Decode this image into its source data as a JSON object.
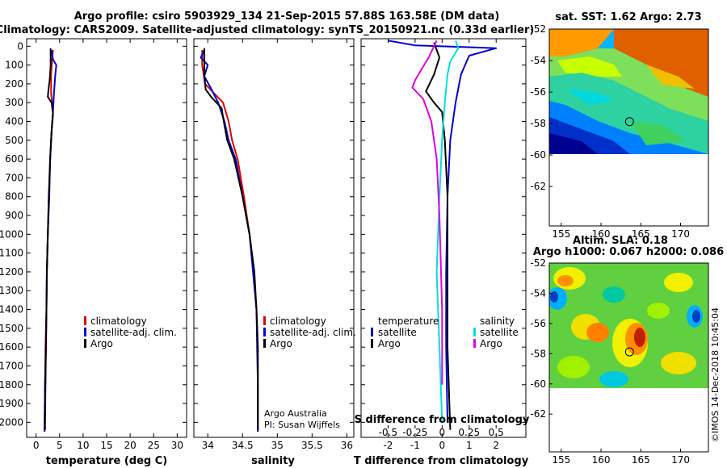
{
  "header": {
    "title_line1": "Argo profile: csiro 5903929_134 21-Sep-2015 57.88S 163.58E (DM data)",
    "title_line2": "Climatology: CARS2009. Satellite-adjusted climatology: synTS_20150921.nc (0.33d earlier)"
  },
  "colors": {
    "climatology": "#e00000",
    "satellite": "#0000d0",
    "argo": "#000000",
    "sat_salinity": "#00e0e0",
    "argo_salinity": "#e000e0"
  },
  "credits": {
    "line1": "Argo Australia",
    "line2": "PI: Susan Wijffels"
  },
  "watermark": "©IMOS 14-Dec-2018 10:45:04",
  "chart_data": [
    {
      "type": "line",
      "id": "temperature",
      "xlabel": "temperature (deg C)",
      "ylabel": "",
      "xlim": [
        -2,
        32
      ],
      "ylim": [
        2080,
        -40
      ],
      "xticks": [
        0,
        5,
        10,
        15,
        20,
        25,
        30
      ],
      "yticks": [
        0,
        100,
        200,
        300,
        400,
        500,
        600,
        700,
        800,
        900,
        1000,
        1100,
        1200,
        1300,
        1400,
        1500,
        1600,
        1700,
        1800,
        1900,
        2000
      ],
      "legend": [
        "climatology",
        "satellite-adj. clim.",
        "Argo"
      ],
      "series": [
        {
          "name": "climatology",
          "color": "#e00000",
          "points": [
            [
              3.6,
              20
            ],
            [
              3.4,
              80
            ],
            [
              3.2,
              150
            ],
            [
              3.2,
              250
            ],
            [
              3.6,
              350
            ],
            [
              3.3,
              450
            ],
            [
              3.0,
              600
            ],
            [
              2.7,
              800
            ],
            [
              2.5,
              1000
            ],
            [
              2.3,
              1200
            ],
            [
              2.2,
              1400
            ],
            [
              2.0,
              1600
            ],
            [
              1.9,
              1800
            ],
            [
              1.8,
              2050
            ]
          ]
        },
        {
          "name": "satellite-adj. clim.",
          "color": "#0000d0",
          "points": [
            [
              3.3,
              20
            ],
            [
              3.6,
              70
            ],
            [
              4.3,
              100
            ],
            [
              4.1,
              150
            ],
            [
              3.8,
              250
            ],
            [
              3.6,
              350
            ],
            [
              3.3,
              450
            ],
            [
              3.0,
              600
            ],
            [
              2.8,
              800
            ],
            [
              2.5,
              1000
            ],
            [
              2.3,
              1200
            ],
            [
              2.2,
              1400
            ],
            [
              2.1,
              1600
            ],
            [
              1.9,
              1800
            ],
            [
              1.8,
              2050
            ]
          ]
        },
        {
          "name": "Argo",
          "color": "#000000",
          "points": [
            [
              3.1,
              10
            ],
            [
              3.1,
              100
            ],
            [
              2.9,
              180
            ],
            [
              2.6,
              240
            ],
            [
              2.5,
              270
            ],
            [
              3.3,
              300
            ],
            [
              3.6,
              360
            ],
            [
              3.3,
              450
            ],
            [
              3.0,
              600
            ],
            [
              2.7,
              800
            ],
            [
              2.5,
              1000
            ],
            [
              2.3,
              1200
            ],
            [
              2.2,
              1400
            ],
            [
              2.1,
              1600
            ],
            [
              2.0,
              1800
            ],
            [
              1.9,
              2040
            ]
          ]
        }
      ]
    },
    {
      "type": "line",
      "id": "salinity",
      "xlabel": "salinity",
      "ylabel": "",
      "xlim": [
        33.8,
        36.1
      ],
      "ylim": [
        2080,
        -40
      ],
      "xticks": [
        34,
        34.5,
        35,
        35.5,
        36
      ],
      "legend": [
        "climatology",
        "satellite-adj. clim.",
        "Argo"
      ],
      "series": [
        {
          "name": "climatology",
          "color": "#e00000",
          "points": [
            [
              33.92,
              20
            ],
            [
              33.92,
              100
            ],
            [
              33.96,
              200
            ],
            [
              34.22,
              300
            ],
            [
              34.3,
              400
            ],
            [
              34.35,
              500
            ],
            [
              34.43,
              600
            ],
            [
              34.52,
              800
            ],
            [
              34.6,
              1000
            ],
            [
              34.66,
              1200
            ],
            [
              34.7,
              1400
            ],
            [
              34.72,
              1600
            ],
            [
              34.72,
              1800
            ],
            [
              34.72,
              2050
            ]
          ]
        },
        {
          "name": "satellite-adj. clim.",
          "color": "#0000d0",
          "points": [
            [
              33.95,
              20
            ],
            [
              33.9,
              60
            ],
            [
              34.0,
              100
            ],
            [
              33.95,
              160
            ],
            [
              34.04,
              220
            ],
            [
              34.15,
              300
            ],
            [
              34.24,
              400
            ],
            [
              34.3,
              500
            ],
            [
              34.4,
              600
            ],
            [
              34.5,
              800
            ],
            [
              34.6,
              1000
            ],
            [
              34.65,
              1200
            ],
            [
              34.7,
              1400
            ],
            [
              34.71,
              1600
            ],
            [
              34.72,
              1800
            ],
            [
              34.72,
              2050
            ]
          ]
        },
        {
          "name": "Argo",
          "color": "#000000",
          "points": [
            [
              33.95,
              10
            ],
            [
              33.95,
              150
            ],
            [
              33.97,
              230
            ],
            [
              34.05,
              270
            ],
            [
              34.2,
              330
            ],
            [
              34.23,
              400
            ],
            [
              34.28,
              500
            ],
            [
              34.38,
              600
            ],
            [
              34.5,
              800
            ],
            [
              34.6,
              1000
            ],
            [
              34.67,
              1200
            ],
            [
              34.7,
              1400
            ],
            [
              34.72,
              1600
            ],
            [
              34.72,
              1800
            ],
            [
              34.72,
              2040
            ]
          ]
        }
      ]
    },
    {
      "type": "line",
      "id": "difference",
      "xlabel": "T difference from climatology",
      "ylabel": "",
      "second_xlabel": "S difference from climatology",
      "xlim": [
        -3,
        3.1
      ],
      "ylim": [
        2080,
        -40
      ],
      "xticks": [
        -2,
        -1,
        0,
        1,
        2
      ],
      "second_xticks": [
        -0.5,
        -0.25,
        0,
        0.25,
        0.5
      ],
      "legend_temperature_title": "temperature",
      "legend_salinity_title": "salinity",
      "legend": [
        "satellite",
        "Argo"
      ],
      "series": [
        {
          "name": "T satellite",
          "color": "#0000d0",
          "points": [
            [
              -2.0,
              -30
            ],
            [
              -1.0,
              -5
            ],
            [
              1.0,
              5
            ],
            [
              2.0,
              10
            ],
            [
              1.0,
              50
            ],
            [
              0.7,
              150
            ],
            [
              0.5,
              300
            ],
            [
              0.3,
              500
            ],
            [
              0.2,
              800
            ],
            [
              0.15,
              1200
            ],
            [
              0.15,
              1600
            ],
            [
              0.2,
              2000
            ]
          ]
        },
        {
          "name": "T Argo",
          "color": "#000000",
          "points": [
            [
              -0.3,
              -20
            ],
            [
              -0.1,
              60
            ],
            [
              -0.3,
              150
            ],
            [
              -0.6,
              240
            ],
            [
              -0.3,
              300
            ],
            [
              0.0,
              350
            ],
            [
              0.1,
              500
            ],
            [
              0.2,
              800
            ],
            [
              0.2,
              1200
            ],
            [
              0.2,
              1600
            ],
            [
              0.3,
              2040
            ]
          ]
        },
        {
          "name": "S satellite",
          "color": "#00e0e0",
          "points": [
            [
              0.5,
              -30
            ],
            [
              0.6,
              10
            ],
            [
              0.3,
              80
            ],
            [
              0.2,
              150
            ],
            [
              0.1,
              300
            ],
            [
              0.0,
              500
            ],
            [
              -0.1,
              800
            ],
            [
              -0.2,
              1200
            ],
            [
              -0.1,
              1600
            ],
            [
              0.0,
              2000
            ]
          ]
        },
        {
          "name": "S Argo",
          "color": "#e000e0",
          "points": [
            [
              -0.2,
              -30
            ],
            [
              -0.5,
              60
            ],
            [
              -1.0,
              180
            ],
            [
              -1.1,
              220
            ],
            [
              -0.7,
              280
            ],
            [
              -0.4,
              400
            ],
            [
              -0.2,
              600
            ],
            [
              -0.1,
              900
            ],
            [
              0.0,
              1400
            ],
            [
              0.0,
              1800
            ]
          ]
        }
      ]
    },
    {
      "type": "heatmap",
      "id": "sst-map",
      "title": "sat. SST: 1.62 Argo: 2.73",
      "xlim": [
        153.5,
        173.5
      ],
      "ylim": [
        -64.5,
        -52
      ],
      "xticks": [
        155,
        160,
        165,
        170
      ],
      "yticks": [
        -52,
        -54,
        -56,
        -58,
        -60,
        -62
      ],
      "marker": [
        163.58,
        -57.88
      ]
    },
    {
      "type": "heatmap",
      "id": "sla-map",
      "title_line1": "Altim. SLA: 0.18",
      "title_line2": "Argo h1000: 0.067 h2000: 0.086",
      "xlim": [
        153.5,
        173.5
      ],
      "ylim": [
        -64.5,
        -52
      ],
      "xticks": [
        155,
        160,
        165,
        170
      ],
      "yticks": [
        -52,
        -54,
        -56,
        -58,
        -60,
        -62
      ],
      "marker": [
        163.58,
        -57.88
      ]
    }
  ]
}
